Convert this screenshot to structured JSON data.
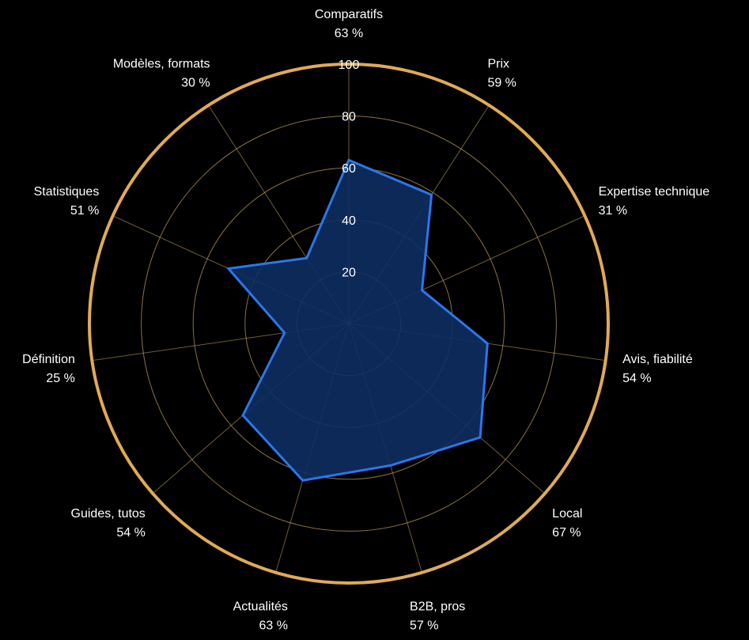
{
  "colors": {
    "background": "#000000",
    "grid": "#b8975a",
    "outer_ring": "#e0aa55",
    "series_fill": "#0d2e62",
    "series_stroke": "#2a77ea",
    "text": "#ffffff"
  },
  "chart_data": {
    "type": "radar",
    "title": "",
    "rlim": [
      0,
      100
    ],
    "r_ticks": [
      "20",
      "40",
      "60",
      "80",
      "100"
    ],
    "r_tick_values": [
      20,
      40,
      60,
      80,
      100
    ],
    "grid": true,
    "categories": [
      {
        "name": "Comparatifs",
        "label": "63 %",
        "value": 63
      },
      {
        "name": "Prix",
        "label": "59 %",
        "value": 59
      },
      {
        "name": "Expertise technique",
        "label": "31 %",
        "value": 31
      },
      {
        "name": "Avis, fiabilité",
        "label": "54 %",
        "value": 54
      },
      {
        "name": "Local",
        "label": "67 %",
        "value": 67
      },
      {
        "name": "B2B, pros",
        "label": "57 %",
        "value": 57
      },
      {
        "name": "Actualités",
        "label": "63 %",
        "value": 63
      },
      {
        "name": "Guides, tutos",
        "label": "54 %",
        "value": 54
      },
      {
        "name": "Définition",
        "label": "25 %",
        "value": 25
      },
      {
        "name": "Statistiques",
        "label": "51 %",
        "value": 51
      },
      {
        "name": "Modèles, formats",
        "label": "30 %",
        "value": 30
      }
    ]
  }
}
